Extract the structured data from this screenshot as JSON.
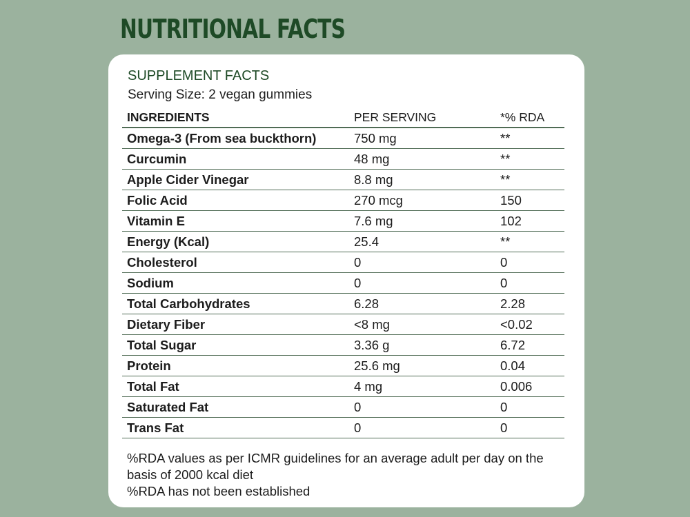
{
  "page": {
    "title": "NUTRITIONAL FACTS"
  },
  "card": {
    "subtitle": "SUPPLEMENT FACTS",
    "serving_size": "Serving Size: 2 vegan gummies",
    "columns": [
      "INGREDIENTS",
      "PER SERVING",
      "*% RDA"
    ],
    "rows": [
      {
        "ingredient": "Omega-3 (From sea buckthorn)",
        "per_serving": "750 mg",
        "rda": "**"
      },
      {
        "ingredient": "Curcumin",
        "per_serving": "48 mg",
        "rda": "**"
      },
      {
        "ingredient": "Apple Cider Vinegar",
        "per_serving": "8.8 mg",
        "rda": "**"
      },
      {
        "ingredient": "Folic Acid",
        "per_serving": "270 mcg",
        "rda": "150"
      },
      {
        "ingredient": "Vitamin E",
        "per_serving": "7.6 mg",
        "rda": "102"
      },
      {
        "ingredient": "Energy (Kcal)",
        "per_serving": "25.4",
        "rda": "**"
      },
      {
        "ingredient": "Cholesterol",
        "per_serving": "0",
        "rda": "0"
      },
      {
        "ingredient": "Sodium",
        "per_serving": "0",
        "rda": "0"
      },
      {
        "ingredient": "Total Carbohydrates",
        "per_serving": "6.28",
        "rda": "2.28"
      },
      {
        "ingredient": "Dietary Fiber",
        "per_serving": "<8 mg",
        "rda": "<0.02"
      },
      {
        "ingredient": "Total Sugar",
        "per_serving": "3.36 g",
        "rda": "6.72"
      },
      {
        "ingredient": "Protein",
        "per_serving": "25.6 mg",
        "rda": "0.04"
      },
      {
        "ingredient": "Total Fat",
        "per_serving": "4 mg",
        "rda": "0.006"
      },
      {
        "ingredient": "Saturated Fat",
        "per_serving": "0",
        "rda": "0"
      },
      {
        "ingredient": "Trans Fat",
        "per_serving": "0",
        "rda": "0"
      }
    ],
    "footnote_1": "%RDA values as per ICMR guidelines for an average adult per day on the basis of 2000 kcal diet",
    "footnote_2": "%RDA has not been established"
  },
  "colors": {
    "background": "#9bb29e",
    "title": "#1e4a26",
    "rule": "#4f6b54"
  }
}
